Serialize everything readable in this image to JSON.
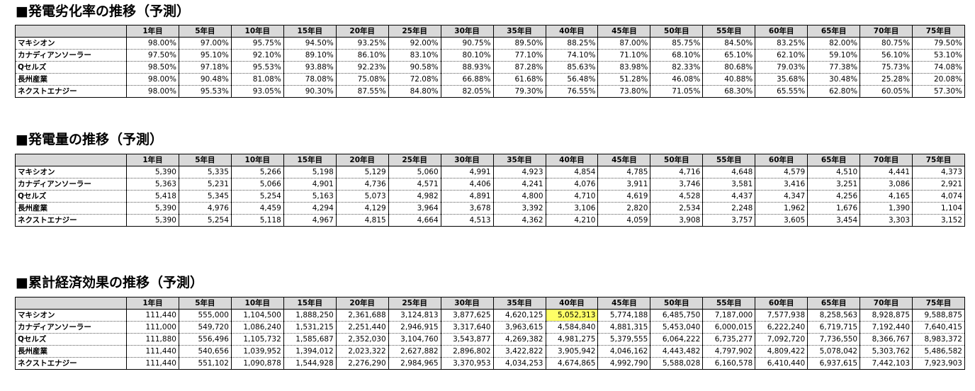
{
  "headers": [
    "1年目",
    "5年目",
    "10年目",
    "15年目",
    "20年目",
    "25年目",
    "30年目",
    "35年目",
    "40年目",
    "45年目",
    "50年目",
    "55年目",
    "60年目",
    "65年目",
    "70年目",
    "75年目"
  ],
  "highlight_color": "#ffff66",
  "sections": [
    {
      "title": "■発電劣化率の推移（予測）",
      "rows": [
        {
          "name": "マキシオン",
          "values": [
            "98.00%",
            "97.00%",
            "95.75%",
            "94.50%",
            "93.25%",
            "92.00%",
            "90.75%",
            "89.50%",
            "88.25%",
            "87.00%",
            "85.75%",
            "84.50%",
            "83.25%",
            "82.00%",
            "80.75%",
            "79.50%"
          ]
        },
        {
          "name": "カナディアンソーラー",
          "values": [
            "97.50%",
            "95.10%",
            "92.10%",
            "89.10%",
            "86.10%",
            "83.10%",
            "80.10%",
            "77.10%",
            "74.10%",
            "71.10%",
            "68.10%",
            "65.10%",
            "62.10%",
            "59.10%",
            "56.10%",
            "53.10%"
          ]
        },
        {
          "name": "Qセルズ",
          "values": [
            "98.50%",
            "97.18%",
            "95.53%",
            "93.88%",
            "92.23%",
            "90.58%",
            "88.93%",
            "87.28%",
            "85.63%",
            "83.98%",
            "82.33%",
            "80.68%",
            "79.03%",
            "77.38%",
            "75.73%",
            "74.08%"
          ]
        },
        {
          "name": "長州産業",
          "values": [
            "98.00%",
            "90.48%",
            "81.08%",
            "78.08%",
            "75.08%",
            "72.08%",
            "66.88%",
            "61.68%",
            "56.48%",
            "51.28%",
            "46.08%",
            "40.88%",
            "35.68%",
            "30.48%",
            "25.28%",
            "20.08%"
          ]
        },
        {
          "name": "ネクストエナジー",
          "values": [
            "98.00%",
            "95.53%",
            "93.05%",
            "90.30%",
            "87.55%",
            "84.80%",
            "82.05%",
            "79.30%",
            "76.55%",
            "73.80%",
            "71.05%",
            "68.30%",
            "65.55%",
            "62.80%",
            "60.05%",
            "57.30%"
          ]
        }
      ]
    },
    {
      "title": "■発電量の推移（予測）",
      "rows": [
        {
          "name": "マキシオン",
          "values": [
            "5,390",
            "5,335",
            "5,266",
            "5,198",
            "5,129",
            "5,060",
            "4,991",
            "4,923",
            "4,854",
            "4,785",
            "4,716",
            "4,648",
            "4,579",
            "4,510",
            "4,441",
            "4,373"
          ]
        },
        {
          "name": "カナディアンソーラー",
          "values": [
            "5,363",
            "5,231",
            "5,066",
            "4,901",
            "4,736",
            "4,571",
            "4,406",
            "4,241",
            "4,076",
            "3,911",
            "3,746",
            "3,581",
            "3,416",
            "3,251",
            "3,086",
            "2,921"
          ]
        },
        {
          "name": "Qセルズ",
          "values": [
            "5,418",
            "5,345",
            "5,254",
            "5,163",
            "5,073",
            "4,982",
            "4,891",
            "4,800",
            "4,710",
            "4,619",
            "4,528",
            "4,437",
            "4,347",
            "4,256",
            "4,165",
            "4,074"
          ]
        },
        {
          "name": "長州産業",
          "values": [
            "5,390",
            "4,976",
            "4,459",
            "4,294",
            "4,129",
            "3,964",
            "3,678",
            "3,392",
            "3,106",
            "2,820",
            "2,534",
            "2,248",
            "1,962",
            "1,676",
            "1,390",
            "1,104"
          ]
        },
        {
          "name": "ネクストエナジー",
          "values": [
            "5,390",
            "5,254",
            "5,118",
            "4,967",
            "4,815",
            "4,664",
            "4,513",
            "4,362",
            "4,210",
            "4,059",
            "3,908",
            "3,757",
            "3,605",
            "3,454",
            "3,303",
            "3,152"
          ]
        }
      ]
    },
    {
      "title": "■累計経済効果の推移（予測）",
      "rows": [
        {
          "name": "マキシオン",
          "values": [
            "111,440",
            "555,000",
            "1,104,500",
            "1,888,250",
            "2,361,688",
            "3,124,813",
            "3,877,625",
            "4,620,125",
            "5,052,313",
            "5,774,188",
            "6,485,750",
            "7,187,000",
            "7,577,938",
            "8,258,563",
            "8,928,875",
            "9,588,875"
          ],
          "highlight_index": 8
        },
        {
          "name": "カナディアンソーラー",
          "values": [
            "111,000",
            "549,720",
            "1,086,240",
            "1,531,215",
            "2,251,440",
            "2,946,915",
            "3,317,640",
            "3,963,615",
            "4,584,840",
            "4,881,315",
            "5,453,040",
            "6,000,015",
            "6,222,240",
            "6,719,715",
            "7,192,440",
            "7,640,415"
          ]
        },
        {
          "name": "Qセルズ",
          "values": [
            "111,880",
            "556,496",
            "1,105,732",
            "1,585,687",
            "2,352,030",
            "3,104,760",
            "3,543,877",
            "4,269,382",
            "4,981,275",
            "5,379,555",
            "6,064,222",
            "6,735,277",
            "7,092,720",
            "7,736,550",
            "8,366,767",
            "8,983,372"
          ]
        },
        {
          "name": "長州産業",
          "values": [
            "111,440",
            "540,656",
            "1,039,952",
            "1,394,012",
            "2,023,322",
            "2,627,882",
            "2,896,802",
            "3,422,822",
            "3,905,942",
            "4,046,162",
            "4,443,482",
            "4,797,902",
            "4,809,422",
            "5,078,042",
            "5,303,762",
            "5,486,582"
          ]
        },
        {
          "name": "ネクストエナジー",
          "values": [
            "111,440",
            "551,102",
            "1,090,878",
            "1,544,928",
            "2,276,290",
            "2,984,965",
            "3,370,953",
            "4,034,253",
            "4,674,865",
            "4,992,790",
            "5,588,028",
            "6,160,578",
            "6,410,440",
            "6,937,615",
            "7,442,103",
            "7,923,903"
          ]
        }
      ]
    }
  ]
}
